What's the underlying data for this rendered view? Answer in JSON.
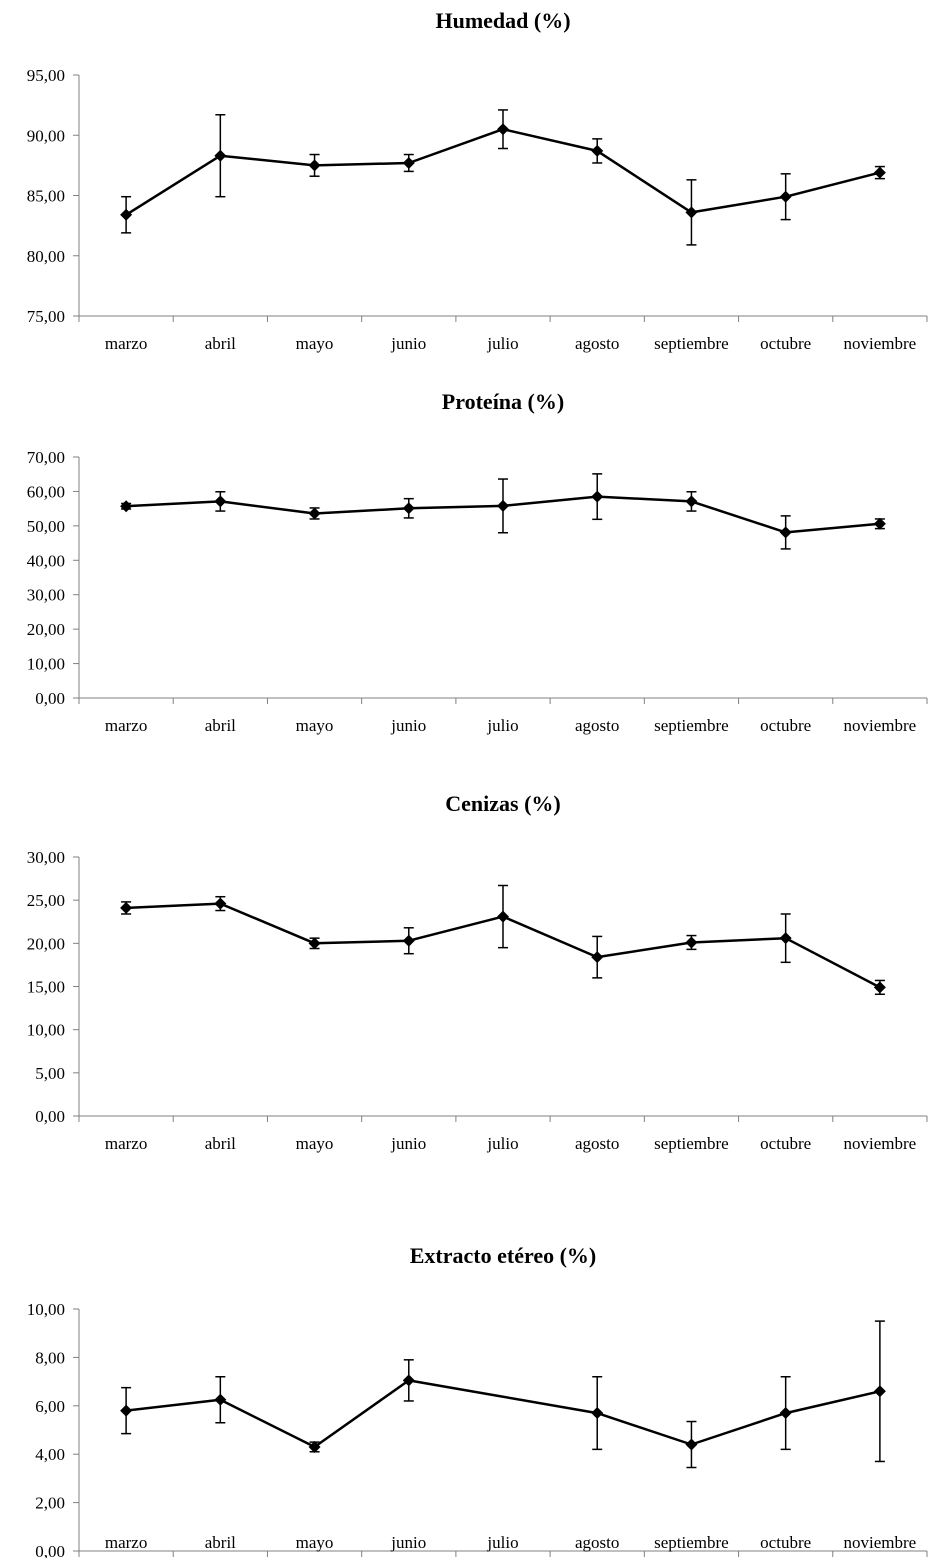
{
  "chart_data": [
    {
      "type": "line",
      "title": "Humedad (%)",
      "categories": [
        "marzo",
        "abril",
        "mayo",
        "junio",
        "julio",
        "agosto",
        "septiembre",
        "octubre",
        "noviembre"
      ],
      "series": [
        {
          "values": [
            83.4,
            88.3,
            87.5,
            87.7,
            90.5,
            88.7,
            83.6,
            84.9,
            86.9
          ],
          "error": [
            1.5,
            3.4,
            0.9,
            0.7,
            1.6,
            1.0,
            2.7,
            1.9,
            0.5
          ]
        }
      ],
      "yticks": [
        "75,00",
        "80,00",
        "85,00",
        "90,00",
        "95,00"
      ],
      "ylim": [
        75,
        95
      ],
      "grid": false,
      "marker": "diamond",
      "color": "#000000"
    },
    {
      "type": "line",
      "title": "Proteína (%)",
      "categories": [
        "marzo",
        "abril",
        "mayo",
        "junio",
        "julio",
        "agosto",
        "septiembre",
        "octubre",
        "noviembre"
      ],
      "series": [
        {
          "values": [
            55.7,
            57.1,
            53.6,
            55.1,
            55.8,
            58.5,
            57.1,
            48.1,
            50.6
          ],
          "error": [
            0.8,
            2.8,
            1.6,
            2.8,
            7.8,
            6.6,
            2.8,
            4.8,
            1.4
          ]
        }
      ],
      "yticks": [
        "0,00",
        "10,00",
        "20,00",
        "30,00",
        "40,00",
        "50,00",
        "60,00",
        "70,00"
      ],
      "ylim": [
        0,
        70
      ],
      "grid": false,
      "marker": "diamond",
      "color": "#000000"
    },
    {
      "type": "line",
      "title": "Cenizas (%)",
      "categories": [
        "marzo",
        "abril",
        "mayo",
        "junio",
        "julio",
        "agosto",
        "septiembre",
        "octubre",
        "noviembre"
      ],
      "series": [
        {
          "values": [
            24.1,
            24.6,
            20.0,
            20.3,
            23.1,
            18.4,
            20.1,
            20.6,
            14.9
          ],
          "error": [
            0.7,
            0.8,
            0.6,
            1.5,
            3.6,
            2.4,
            0.8,
            2.8,
            0.8
          ]
        }
      ],
      "yticks": [
        "0,00",
        "5,00",
        "10,00",
        "15,00",
        "20,00",
        "25,00",
        "30,00"
      ],
      "ylim": [
        0,
        30
      ],
      "grid": false,
      "marker": "diamond",
      "color": "#000000"
    },
    {
      "type": "line",
      "title": "Extracto etéreo (%)",
      "categories": [
        "marzo",
        "abril",
        "mayo",
        "junio",
        "julio",
        "agosto",
        "septiembre",
        "octubre",
        "noviembre"
      ],
      "series": [
        {
          "values": [
            5.8,
            6.25,
            4.3,
            7.05,
            null,
            5.7,
            4.4,
            5.7,
            6.6
          ],
          "error": [
            0.95,
            0.95,
            0.2,
            0.85,
            null,
            1.5,
            0.95,
            1.5,
            2.9
          ]
        }
      ],
      "yticks": [
        "0,00",
        "2,00",
        "4,00",
        "6,00",
        "8,00",
        "10,00"
      ],
      "ylim": [
        0,
        10
      ],
      "grid": false,
      "marker": "diamond",
      "color": "#000000",
      "connect_gaps": true
    }
  ]
}
